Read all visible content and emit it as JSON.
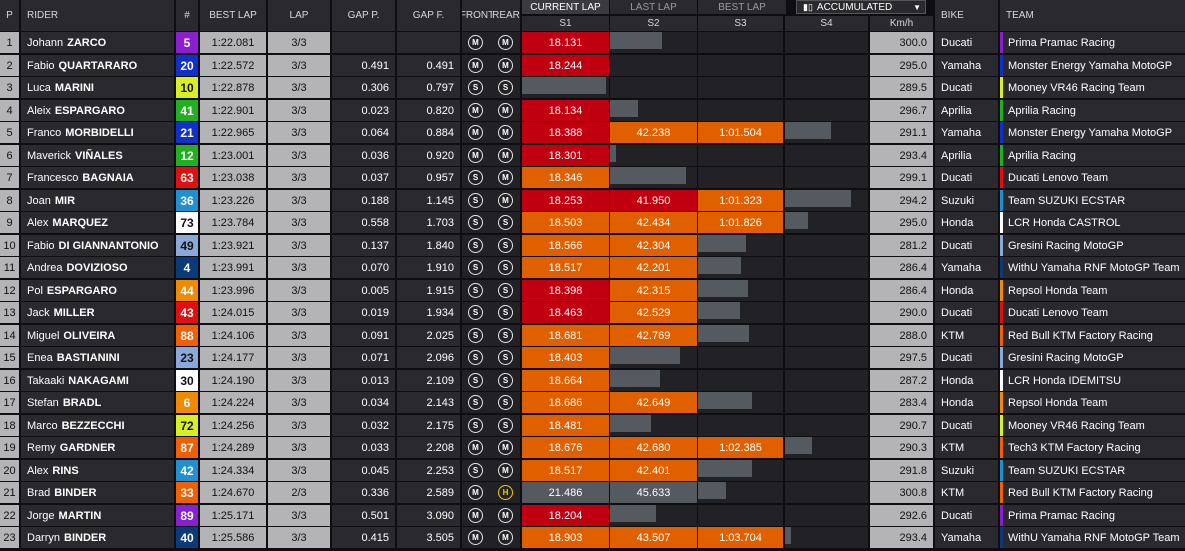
{
  "headers": {
    "p": "P",
    "rider": "RIDER",
    "number": "#",
    "best_lap": "BEST LAP",
    "lap": "LAP",
    "gap_p": "GAP P.",
    "gap_f": "GAP F.",
    "front": "FRONT",
    "rear": "REAR",
    "s1": "S1",
    "s2": "S2",
    "s3": "S3",
    "s4": "S4",
    "kmh": "Km/h",
    "bike": "BIKE",
    "team": "TEAM"
  },
  "tabs": {
    "current_lap": "CURRENT LAP",
    "last_lap": "LAST LAP",
    "best_lap": "BEST LAP",
    "dropdown": "ACCUMULATED",
    "dropdown_icon": "bar-chart-icon"
  },
  "colors": {
    "sector_red": "#c00010",
    "sector_orange": "#e06000",
    "sector_grey": "#555a60",
    "tyre_medium": "#e8e8e8",
    "tyre_hard": "#f0d000"
  },
  "rows": [
    {
      "pos": "1",
      "first": "Johann",
      "last": "ZARCO",
      "num": "5",
      "num_bg": "#8a1fd0",
      "num_fg": "#fff",
      "best": "1:22.081",
      "lap": "3/3",
      "gap_p": "",
      "gap_f": "",
      "front": "M",
      "rear": "M",
      "rear_type": "medium",
      "s1": "18.131",
      "s1c": "red",
      "s1f": 1,
      "s2": "",
      "s2c": "grey",
      "s2f": 0.6,
      "s3": "",
      "s3c": "none",
      "s3f": 0,
      "s4": "",
      "s4c": "none",
      "s4f": 0,
      "kmh": "300.0",
      "bike": "Ducati",
      "team": "Prima Pramac Racing",
      "team_color": "#8a1fd0"
    },
    {
      "pos": "2",
      "first": "Fabio",
      "last": "QUARTARARO",
      "num": "20",
      "num_bg": "#1030c8",
      "num_fg": "#fff",
      "best": "1:22.572",
      "lap": "3/3",
      "gap_p": "0.491",
      "gap_f": "0.491",
      "front": "M",
      "rear": "M",
      "rear_type": "medium",
      "s1": "18.244",
      "s1c": "red",
      "s1f": 1,
      "s2": "",
      "s2c": "none",
      "s2f": 0,
      "s3": "",
      "s3c": "none",
      "s3f": 0,
      "s4": "",
      "s4c": "none",
      "s4f": 0,
      "kmh": "295.0",
      "bike": "Yamaha",
      "team": "Monster Energy Yamaha MotoGP",
      "team_color": "#1030c8"
    },
    {
      "pos": "3",
      "first": "Luca",
      "last": "MARINI",
      "num": "10",
      "num_bg": "#d8f020",
      "num_fg": "#111",
      "best": "1:22.878",
      "lap": "3/3",
      "gap_p": "0.306",
      "gap_f": "0.797",
      "front": "S",
      "rear": "S",
      "rear_type": "medium",
      "s1": "",
      "s1c": "grey",
      "s1f": 0.96,
      "s2": "",
      "s2c": "none",
      "s2f": 0,
      "s3": "",
      "s3c": "none",
      "s3f": 0,
      "s4": "",
      "s4c": "none",
      "s4f": 0,
      "kmh": "289.5",
      "bike": "Ducati",
      "team": "Mooney VR46 Racing Team",
      "team_color": "#d8f020"
    },
    {
      "pos": "4",
      "first": "Aleix",
      "last": "ESPARGARO",
      "num": "41",
      "num_bg": "#20b020",
      "num_fg": "#fff",
      "best": "1:22.901",
      "lap": "3/3",
      "gap_p": "0.023",
      "gap_f": "0.820",
      "front": "M",
      "rear": "M",
      "rear_type": "medium",
      "s1": "18.134",
      "s1c": "red",
      "s1f": 1,
      "s2": "",
      "s2c": "grey",
      "s2f": 0.32,
      "s3": "",
      "s3c": "none",
      "s3f": 0,
      "s4": "",
      "s4c": "none",
      "s4f": 0,
      "kmh": "296.7",
      "bike": "Aprilia",
      "team": "Aprilia Racing",
      "team_color": "#20b020"
    },
    {
      "pos": "5",
      "first": "Franco",
      "last": "MORBIDELLI",
      "num": "21",
      "num_bg": "#1030c8",
      "num_fg": "#fff",
      "best": "1:22.965",
      "lap": "3/3",
      "gap_p": "0.064",
      "gap_f": "0.884",
      "front": "M",
      "rear": "M",
      "rear_type": "medium",
      "s1": "18.388",
      "s1c": "red",
      "s1f": 1,
      "s2": "42.238",
      "s2c": "orange",
      "s2f": 1,
      "s3": "1:01.504",
      "s3c": "orange",
      "s3f": 1,
      "s4": "",
      "s4c": "grey",
      "s4f": 0.55,
      "kmh": "291.1",
      "bike": "Yamaha",
      "team": "Monster Energy Yamaha MotoGP",
      "team_color": "#1030c8"
    },
    {
      "pos": "6",
      "first": "Maverick",
      "last": "VIÑALES",
      "num": "12",
      "num_bg": "#20b020",
      "num_fg": "#fff",
      "best": "1:23.001",
      "lap": "3/3",
      "gap_p": "0.036",
      "gap_f": "0.920",
      "front": "M",
      "rear": "M",
      "rear_type": "medium",
      "s1": "18.301",
      "s1c": "red",
      "s1f": 1,
      "s2": "",
      "s2c": "grey",
      "s2f": 0.07,
      "s3": "",
      "s3c": "none",
      "s3f": 0,
      "s4": "",
      "s4c": "none",
      "s4f": 0,
      "kmh": "293.4",
      "bike": "Aprilia",
      "team": "Aprilia Racing",
      "team_color": "#20b020"
    },
    {
      "pos": "7",
      "first": "Francesco",
      "last": "BAGNAIA",
      "num": "63",
      "num_bg": "#e01010",
      "num_fg": "#fff",
      "best": "1:23.038",
      "lap": "3/3",
      "gap_p": "0.037",
      "gap_f": "0.957",
      "front": "S",
      "rear": "M",
      "rear_type": "medium",
      "s1": "18.346",
      "s1c": "orange",
      "s1f": 1,
      "s2": "",
      "s2c": "grey",
      "s2f": 0.87,
      "s3": "",
      "s3c": "none",
      "s3f": 0,
      "s4": "",
      "s4c": "none",
      "s4f": 0,
      "kmh": "299.1",
      "bike": "Ducati",
      "team": "Ducati Lenovo Team",
      "team_color": "#e01010"
    },
    {
      "pos": "8",
      "first": "Joan",
      "last": "MIR",
      "num": "36",
      "num_bg": "#2090d0",
      "num_fg": "#fff",
      "best": "1:23.226",
      "lap": "3/3",
      "gap_p": "0.188",
      "gap_f": "1.145",
      "front": "S",
      "rear": "M",
      "rear_type": "medium",
      "s1": "18.253",
      "s1c": "red",
      "s1f": 1,
      "s2": "41.950",
      "s2c": "red",
      "s2f": 1,
      "s3": "1:01.323",
      "s3c": "orange",
      "s3f": 1,
      "s4": "",
      "s4c": "grey",
      "s4f": 0.79,
      "kmh": "294.2",
      "bike": "Suzuki",
      "team": "Team SUZUKI ECSTAR",
      "team_color": "#2090d0"
    },
    {
      "pos": "9",
      "first": "Alex",
      "last": "MARQUEZ",
      "num": "73",
      "num_bg": "#ffffff",
      "num_fg": "#111",
      "best": "1:23.784",
      "lap": "3/3",
      "gap_p": "0.558",
      "gap_f": "1.703",
      "front": "S",
      "rear": "S",
      "rear_type": "medium",
      "s1": "18.503",
      "s1c": "orange",
      "s1f": 1,
      "s2": "42.434",
      "s2c": "orange",
      "s2f": 1,
      "s3": "1:01.826",
      "s3c": "orange",
      "s3f": 1,
      "s4": "",
      "s4c": "grey",
      "s4f": 0.28,
      "kmh": "295.0",
      "bike": "Honda",
      "team": "LCR Honda CASTROL",
      "team_color": "#ffffff"
    },
    {
      "pos": "10",
      "first": "Fabio",
      "last": "DI GIANNANTONIO",
      "num": "49",
      "num_bg": "#8aa8d8",
      "num_fg": "#111",
      "best": "1:23.921",
      "lap": "3/3",
      "gap_p": "0.137",
      "gap_f": "1.840",
      "front": "S",
      "rear": "S",
      "rear_type": "medium",
      "s1": "18.566",
      "s1c": "orange",
      "s1f": 1,
      "s2": "42.304",
      "s2c": "orange",
      "s2f": 1,
      "s3": "",
      "s3c": "grey",
      "s3f": 0.56,
      "s4": "",
      "s4c": "none",
      "s4f": 0,
      "kmh": "281.2",
      "bike": "Ducati",
      "team": "Gresini Racing MotoGP",
      "team_color": "#8aa8d8"
    },
    {
      "pos": "11",
      "first": "Andrea",
      "last": "DOVIZIOSO",
      "num": "4",
      "num_bg": "#0a3a7a",
      "num_fg": "#fff",
      "best": "1:23.991",
      "lap": "3/3",
      "gap_p": "0.070",
      "gap_f": "1.910",
      "front": "S",
      "rear": "S",
      "rear_type": "medium",
      "s1": "18.517",
      "s1c": "orange",
      "s1f": 1,
      "s2": "42.201",
      "s2c": "orange",
      "s2f": 1,
      "s3": "",
      "s3c": "grey",
      "s3f": 0.51,
      "s4": "",
      "s4c": "none",
      "s4f": 0,
      "kmh": "286.4",
      "bike": "Yamaha",
      "team": "WithU Yamaha RNF MotoGP Team",
      "team_color": "#0a3a7a"
    },
    {
      "pos": "12",
      "first": "Pol",
      "last": "ESPARGARO",
      "num": "44",
      "num_bg": "#f08a00",
      "num_fg": "#fff",
      "best": "1:23.996",
      "lap": "3/3",
      "gap_p": "0.005",
      "gap_f": "1.915",
      "front": "S",
      "rear": "S",
      "rear_type": "medium",
      "s1": "18.398",
      "s1c": "red",
      "s1f": 1,
      "s2": "42.315",
      "s2c": "orange",
      "s2f": 1,
      "s3": "",
      "s3c": "grey",
      "s3f": 0.59,
      "s4": "",
      "s4c": "none",
      "s4f": 0,
      "kmh": "286.4",
      "bike": "Honda",
      "team": "Repsol Honda Team",
      "team_color": "#f08a00"
    },
    {
      "pos": "13",
      "first": "Jack",
      "last": "MILLER",
      "num": "43",
      "num_bg": "#e01010",
      "num_fg": "#fff",
      "best": "1:24.015",
      "lap": "3/3",
      "gap_p": "0.019",
      "gap_f": "1.934",
      "front": "S",
      "rear": "S",
      "rear_type": "medium",
      "s1": "18.463",
      "s1c": "red",
      "s1f": 1,
      "s2": "42.529",
      "s2c": "orange",
      "s2f": 1,
      "s3": "",
      "s3c": "grey",
      "s3f": 0.49,
      "s4": "",
      "s4c": "none",
      "s4f": 0,
      "kmh": "290.0",
      "bike": "Ducati",
      "team": "Ducati Lenovo Team",
      "team_color": "#e01010"
    },
    {
      "pos": "14",
      "first": "Miguel",
      "last": "OLIVEIRA",
      "num": "88",
      "num_bg": "#f06000",
      "num_fg": "#fff",
      "best": "1:24.106",
      "lap": "3/3",
      "gap_p": "0.091",
      "gap_f": "2.025",
      "front": "S",
      "rear": "S",
      "rear_type": "medium",
      "s1": "18.681",
      "s1c": "orange",
      "s1f": 1,
      "s2": "42.769",
      "s2c": "orange",
      "s2f": 1,
      "s3": "",
      "s3c": "grey",
      "s3f": 0.6,
      "s4": "",
      "s4c": "none",
      "s4f": 0,
      "kmh": "288.0",
      "bike": "KTM",
      "team": "Red Bull KTM Factory Racing",
      "team_color": "#f06000"
    },
    {
      "pos": "15",
      "first": "Enea",
      "last": "BASTIANINI",
      "num": "23",
      "num_bg": "#8aa8d8",
      "num_fg": "#111",
      "best": "1:24.177",
      "lap": "3/3",
      "gap_p": "0.071",
      "gap_f": "2.096",
      "front": "S",
      "rear": "S",
      "rear_type": "medium",
      "s1": "18.403",
      "s1c": "orange",
      "s1f": 1,
      "s2": "",
      "s2c": "grey",
      "s2f": 0.8,
      "s3": "",
      "s3c": "none",
      "s3f": 0,
      "s4": "",
      "s4c": "none",
      "s4f": 0,
      "kmh": "297.5",
      "bike": "Ducati",
      "team": "Gresini Racing MotoGP",
      "team_color": "#8aa8d8"
    },
    {
      "pos": "16",
      "first": "Takaaki",
      "last": "NAKAGAMI",
      "num": "30",
      "num_bg": "#ffffff",
      "num_fg": "#111",
      "best": "1:24.190",
      "lap": "3/3",
      "gap_p": "0.013",
      "gap_f": "2.109",
      "front": "S",
      "rear": "S",
      "rear_type": "medium",
      "s1": "18.664",
      "s1c": "orange",
      "s1f": 1,
      "s2": "",
      "s2c": "grey",
      "s2f": 0.58,
      "s3": "",
      "s3c": "none",
      "s3f": 0,
      "s4": "",
      "s4c": "none",
      "s4f": 0,
      "kmh": "287.2",
      "bike": "Honda",
      "team": "LCR Honda IDEMITSU",
      "team_color": "#ffffff"
    },
    {
      "pos": "17",
      "first": "Stefan",
      "last": "BRADL",
      "num": "6",
      "num_bg": "#f08a00",
      "num_fg": "#fff",
      "best": "1:24.224",
      "lap": "3/3",
      "gap_p": "0.034",
      "gap_f": "2.143",
      "front": "S",
      "rear": "S",
      "rear_type": "medium",
      "s1": "18.686",
      "s1c": "orange",
      "s1f": 1,
      "s2": "42.649",
      "s2c": "orange",
      "s2f": 1,
      "s3": "",
      "s3c": "grey",
      "s3f": 0.63,
      "s4": "",
      "s4c": "none",
      "s4f": 0,
      "kmh": "283.4",
      "bike": "Honda",
      "team": "Repsol Honda Team",
      "team_color": "#f08a00"
    },
    {
      "pos": "18",
      "first": "Marco",
      "last": "BEZZECCHI",
      "num": "72",
      "num_bg": "#d8f020",
      "num_fg": "#111",
      "best": "1:24.256",
      "lap": "3/3",
      "gap_p": "0.032",
      "gap_f": "2.175",
      "front": "S",
      "rear": "S",
      "rear_type": "medium",
      "s1": "18.481",
      "s1c": "orange",
      "s1f": 1,
      "s2": "",
      "s2c": "grey",
      "s2f": 0.47,
      "s3": "",
      "s3c": "none",
      "s3f": 0,
      "s4": "",
      "s4c": "none",
      "s4f": 0,
      "kmh": "290.7",
      "bike": "Ducati",
      "team": "Mooney VR46 Racing Team",
      "team_color": "#d8f020"
    },
    {
      "pos": "19",
      "first": "Remy",
      "last": "GARDNER",
      "num": "87",
      "num_bg": "#f06000",
      "num_fg": "#fff",
      "best": "1:24.289",
      "lap": "3/3",
      "gap_p": "0.033",
      "gap_f": "2.208",
      "front": "M",
      "rear": "M",
      "rear_type": "medium",
      "s1": "18.676",
      "s1c": "orange",
      "s1f": 1,
      "s2": "42.680",
      "s2c": "orange",
      "s2f": 1,
      "s3": "1:02.385",
      "s3c": "orange",
      "s3f": 1,
      "s4": "",
      "s4c": "grey",
      "s4f": 0.33,
      "kmh": "290.3",
      "bike": "KTM",
      "team": "Tech3 KTM Factory Racing",
      "team_color": "#f06000"
    },
    {
      "pos": "20",
      "first": "Alex",
      "last": "RINS",
      "num": "42",
      "num_bg": "#2090d0",
      "num_fg": "#fff",
      "best": "1:24.334",
      "lap": "3/3",
      "gap_p": "0.045",
      "gap_f": "2.253",
      "front": "S",
      "rear": "M",
      "rear_type": "medium",
      "s1": "18.517",
      "s1c": "orange",
      "s1f": 1,
      "s2": "42.401",
      "s2c": "orange",
      "s2f": 1,
      "s3": "",
      "s3c": "grey",
      "s3f": 0.64,
      "s4": "",
      "s4c": "none",
      "s4f": 0,
      "kmh": "291.8",
      "bike": "Suzuki",
      "team": "Team SUZUKI ECSTAR",
      "team_color": "#2090d0"
    },
    {
      "pos": "21",
      "first": "Brad",
      "last": "BINDER",
      "num": "33",
      "num_bg": "#f06000",
      "num_fg": "#fff",
      "best": "1:24.670",
      "lap": "2/3",
      "gap_p": "0.336",
      "gap_f": "2.589",
      "front": "M",
      "rear": "H",
      "rear_type": "hard",
      "s1": "21.486",
      "s1c": "grey",
      "s1f": 1,
      "s2": "45.633",
      "s2c": "grey",
      "s2f": 1,
      "s3": "",
      "s3c": "grey",
      "s3f": 0.33,
      "s4": "",
      "s4c": "none",
      "s4f": 0,
      "kmh": "300.8",
      "bike": "KTM",
      "team": "Red Bull KTM Factory Racing",
      "team_color": "#f06000"
    },
    {
      "pos": "22",
      "first": "Jorge",
      "last": "MARTIN",
      "num": "89",
      "num_bg": "#8a1fd0",
      "num_fg": "#fff",
      "best": "1:25.171",
      "lap": "3/3",
      "gap_p": "0.501",
      "gap_f": "3.090",
      "front": "M",
      "rear": "M",
      "rear_type": "medium",
      "s1": "18.204",
      "s1c": "red",
      "s1f": 1,
      "s2": "",
      "s2c": "grey",
      "s2f": 0.53,
      "s3": "",
      "s3c": "none",
      "s3f": 0,
      "s4": "",
      "s4c": "none",
      "s4f": 0,
      "kmh": "292.6",
      "bike": "Ducati",
      "team": "Prima Pramac Racing",
      "team_color": "#8a1fd0"
    },
    {
      "pos": "23",
      "first": "Darryn",
      "last": "BINDER",
      "num": "40",
      "num_bg": "#0a3a7a",
      "num_fg": "#fff",
      "best": "1:25.586",
      "lap": "3/3",
      "gap_p": "0.415",
      "gap_f": "3.505",
      "front": "M",
      "rear": "M",
      "rear_type": "medium",
      "s1": "18.903",
      "s1c": "orange",
      "s1f": 1,
      "s2": "43.507",
      "s2c": "orange",
      "s2f": 1,
      "s3": "1:03.704",
      "s3c": "orange",
      "s3f": 1,
      "s4": "",
      "s4c": "grey",
      "s4f": 0.07,
      "kmh": "293.4",
      "bike": "Yamaha",
      "team": "WithU Yamaha RNF MotoGP Team",
      "team_color": "#0a3a7a"
    }
  ]
}
